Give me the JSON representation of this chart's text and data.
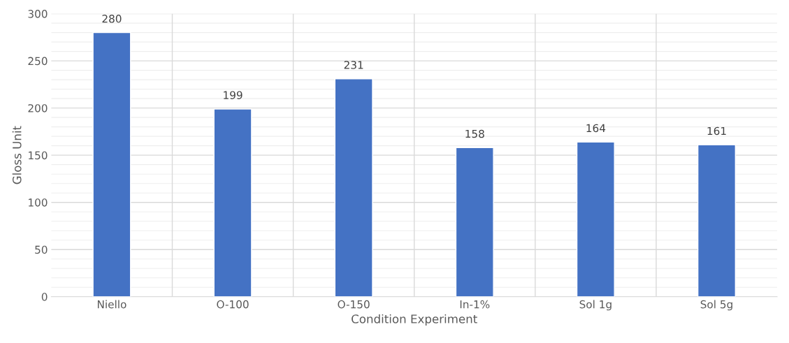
{
  "chart_data": {
    "type": "bar",
    "categories": [
      "Niello",
      "O-100",
      "O-150",
      "In-1%",
      "Sol 1g",
      "Sol 5g"
    ],
    "values": [
      280,
      199,
      231,
      158,
      164,
      161
    ],
    "color": "#4472c4",
    "xlabel": "Condition Experiment",
    "ylabel": "Gloss Unit",
    "ylim": [
      0,
      300
    ],
    "yticks": [
      0,
      50,
      100,
      150,
      200,
      250,
      300
    ],
    "grid": true,
    "data_labels": true,
    "legend": false
  }
}
